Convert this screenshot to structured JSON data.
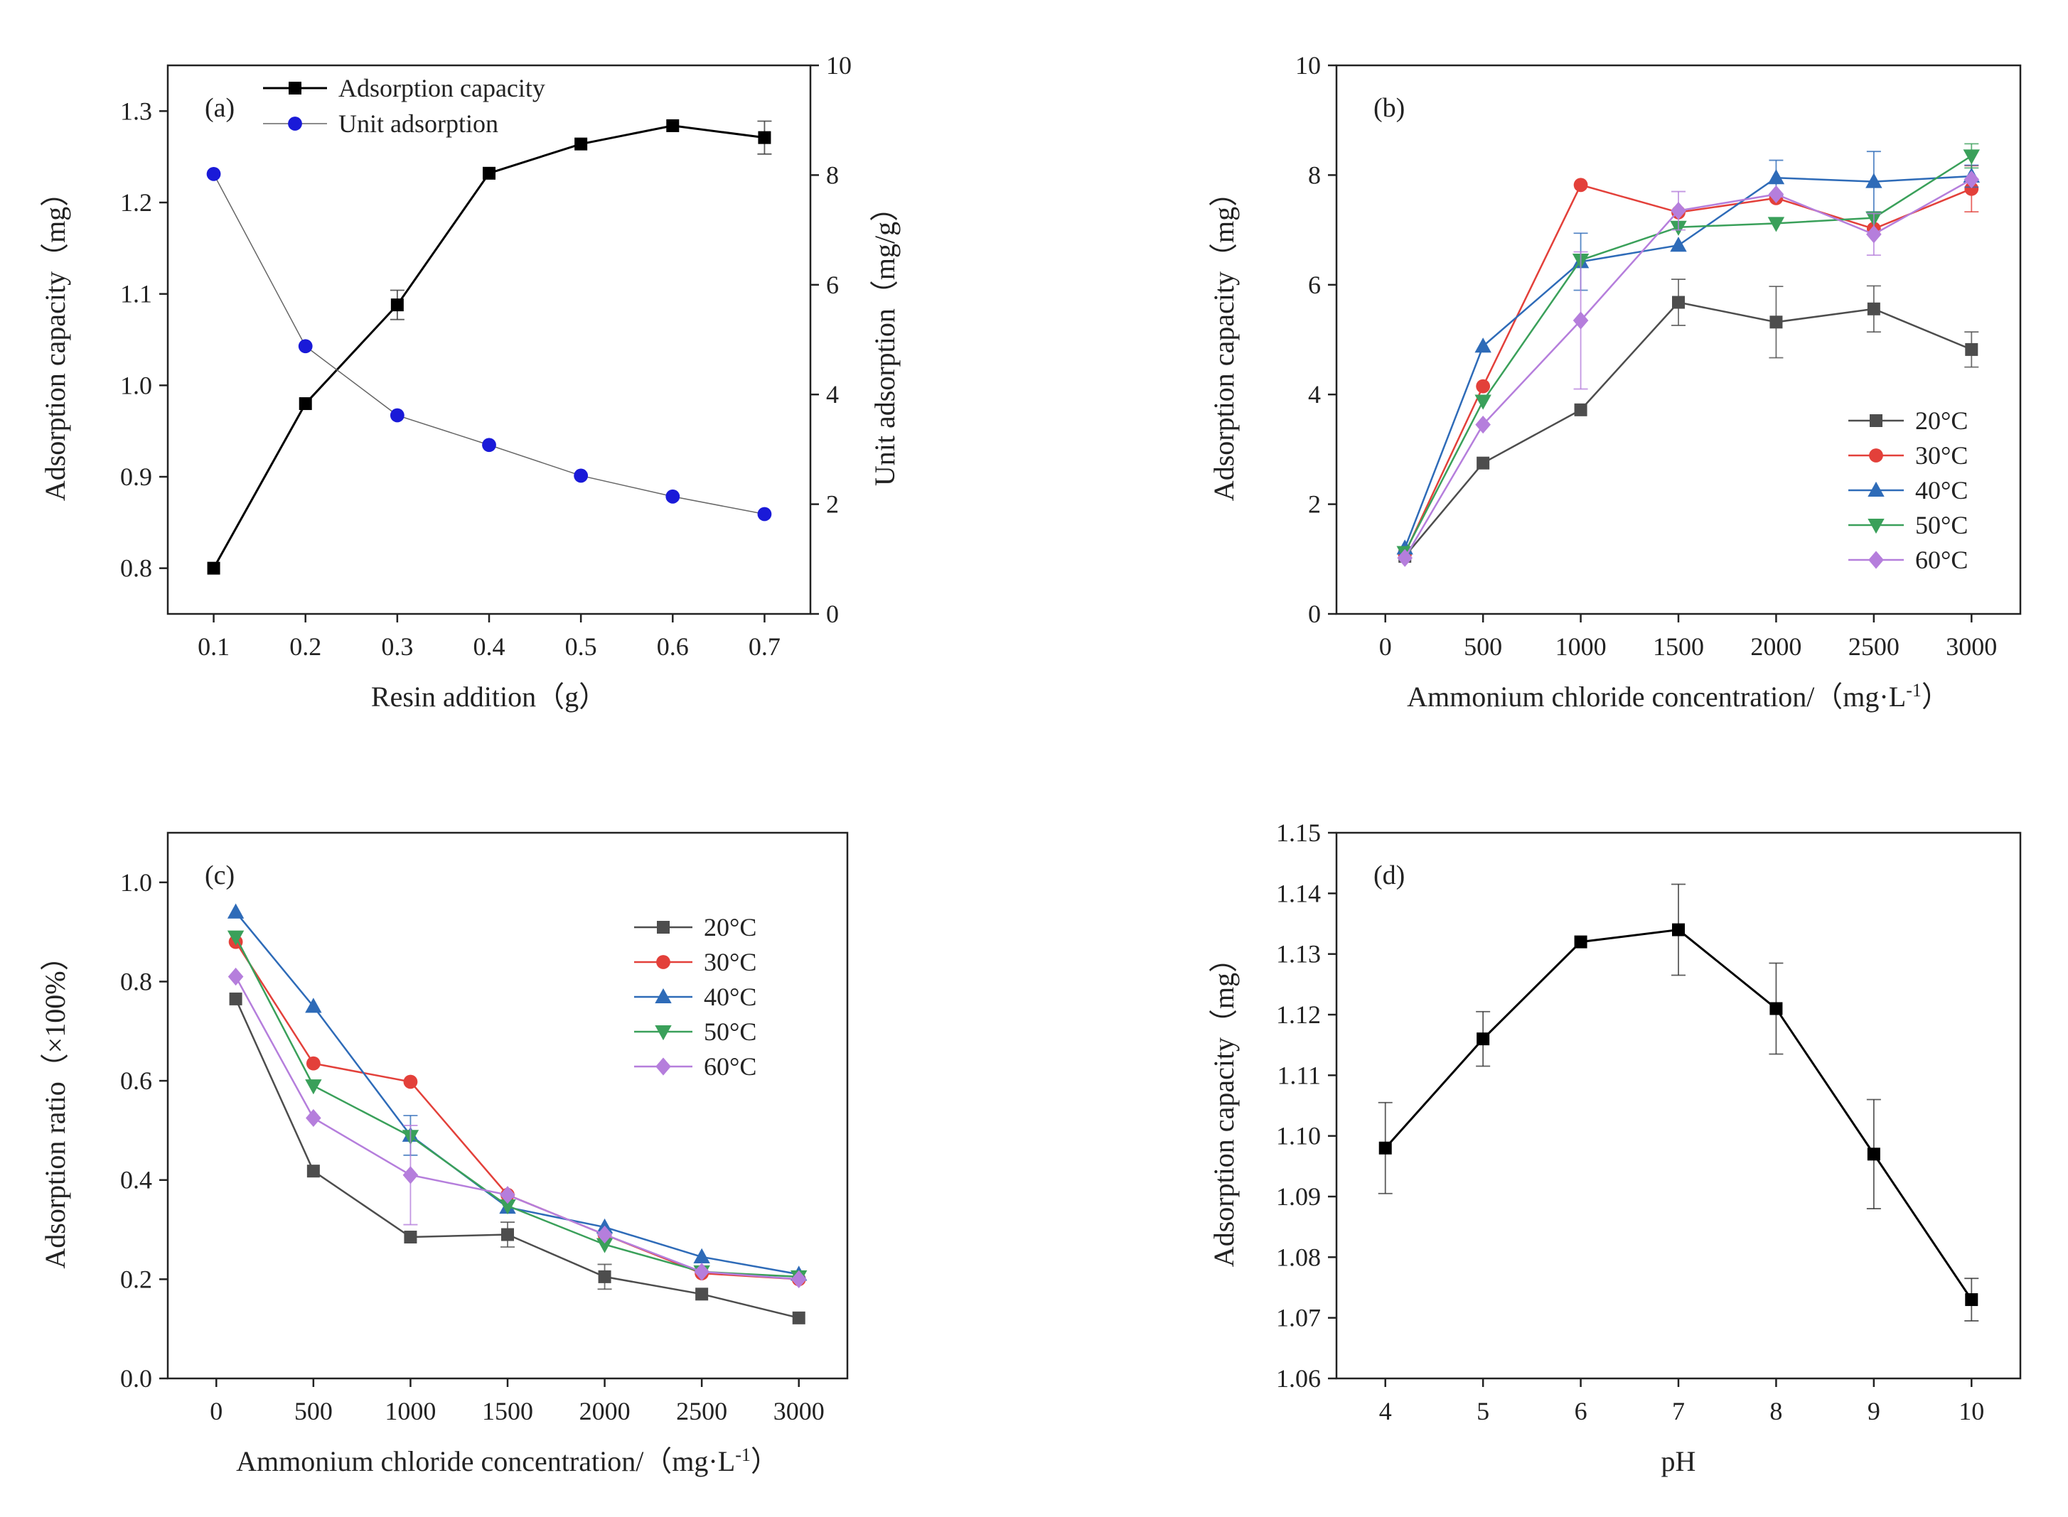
{
  "chart_data": [
    {
      "id": "a",
      "type": "line",
      "panel_label": "(a)",
      "xlabel": "Resin addition（g）",
      "ylabel": "Adsorption capacity（mg）",
      "y2label": "Unit adsorption（mg/g）",
      "xlim": [
        0.05,
        0.75
      ],
      "ylim": [
        0.75,
        1.35
      ],
      "y2lim": [
        0,
        10
      ],
      "x_ticks": [
        0.1,
        0.2,
        0.3,
        0.4,
        0.5,
        0.6,
        0.7
      ],
      "x_tick_labels": [
        "0.1",
        "0.2",
        "0.3",
        "0.4",
        "0.5",
        "0.6",
        "0.7"
      ],
      "y_ticks": [
        0.8,
        0.9,
        1.0,
        1.1,
        1.2,
        1.3
      ],
      "y_tick_labels": [
        "0.8",
        "0.9",
        "1.0",
        "1.1",
        "1.2",
        "1.3"
      ],
      "y2_ticks": [
        0,
        2,
        4,
        6,
        8,
        10
      ],
      "y2_tick_labels": [
        "0",
        "2",
        "4",
        "6",
        "8",
        "10"
      ],
      "legend": "top-left",
      "grid": false,
      "x": [
        0.1,
        0.2,
        0.3,
        0.4,
        0.5,
        0.6,
        0.7
      ],
      "series": [
        {
          "name": "Adsorption capacity",
          "axis": "left",
          "color": "#000000",
          "marker": "square",
          "line_width": 3,
          "values": [
            0.8,
            0.98,
            1.088,
            1.232,
            1.264,
            1.284,
            1.271
          ],
          "errors": [
            0,
            0,
            0.016,
            0,
            0,
            0,
            0.018
          ]
        },
        {
          "name": "Unit adsorption",
          "axis": "right",
          "color": "#1a1ad8",
          "line_color": "#666666",
          "marker": "circle",
          "line_width": 1.5,
          "values": [
            8.02,
            4.88,
            3.62,
            3.08,
            2.52,
            2.14,
            1.82
          ],
          "errors": [
            0,
            0,
            0,
            0,
            0,
            0,
            0
          ]
        }
      ]
    },
    {
      "id": "b",
      "type": "line",
      "panel_label": "(b)",
      "xlabel": "Ammonium chloride concentration/（mg·L",
      "xlabel_sup": "-1",
      "xlabel_tail": "）",
      "ylabel": "Adsorption capacity（mg）",
      "xlim": [
        -250,
        3250
      ],
      "ylim": [
        0,
        10
      ],
      "x_ticks": [
        0,
        500,
        1000,
        1500,
        2000,
        2500,
        3000
      ],
      "x_tick_labels": [
        "0",
        "500",
        "1000",
        "1500",
        "2000",
        "2500",
        "3000"
      ],
      "y_ticks": [
        0,
        2,
        4,
        6,
        8,
        10
      ],
      "y_tick_labels": [
        "0",
        "2",
        "4",
        "6",
        "8",
        "10"
      ],
      "legend": "bottom-right",
      "grid": false,
      "x": [
        100,
        500,
        1000,
        1500,
        2000,
        2500,
        3000
      ],
      "series": [
        {
          "name": "20°C",
          "color": "#4d4d4d",
          "marker": "square",
          "values": [
            1.05,
            2.75,
            3.72,
            5.68,
            5.32,
            5.56,
            4.82
          ],
          "errors": [
            0,
            0,
            0,
            0.42,
            0.65,
            0.42,
            0.32
          ]
        },
        {
          "name": "30°C",
          "color": "#e3403a",
          "marker": "circle",
          "values": [
            1.1,
            4.15,
            7.82,
            7.32,
            7.58,
            7.02,
            7.75
          ],
          "errors": [
            0,
            0,
            0,
            0,
            0,
            0,
            0.42
          ]
        },
        {
          "name": "40°C",
          "color": "#2e6bb8",
          "marker": "triangle-up",
          "values": [
            1.2,
            4.88,
            6.42,
            6.72,
            7.95,
            7.88,
            7.98
          ],
          "errors": [
            0,
            0,
            0.52,
            0,
            0.32,
            0.55,
            0.2
          ]
        },
        {
          "name": "50°C",
          "color": "#3aa05a",
          "marker": "triangle-down",
          "values": [
            1.12,
            3.88,
            6.45,
            7.05,
            7.12,
            7.22,
            8.35
          ],
          "errors": [
            0,
            0,
            0,
            0,
            0,
            0,
            0.22
          ]
        },
        {
          "name": "60°C",
          "color": "#b57edc",
          "marker": "diamond",
          "values": [
            1.02,
            3.45,
            5.35,
            7.35,
            7.65,
            6.92,
            7.92
          ],
          "errors": [
            0,
            0,
            1.25,
            0.35,
            0,
            0.38,
            0
          ]
        }
      ]
    },
    {
      "id": "c",
      "type": "line",
      "panel_label": "(c)",
      "xlabel": "Ammonium chloride concentration/（mg·L",
      "xlabel_sup": "-1",
      "xlabel_tail": "）",
      "ylabel": "Adsorption ratio（×100%）",
      "xlim": [
        -250,
        3250
      ],
      "ylim": [
        0.0,
        1.1
      ],
      "x_ticks": [
        0,
        500,
        1000,
        1500,
        2000,
        2500,
        3000
      ],
      "x_tick_labels": [
        "0",
        "500",
        "1000",
        "1500",
        "2000",
        "2500",
        "3000"
      ],
      "y_ticks": [
        0.0,
        0.2,
        0.4,
        0.6,
        0.8,
        1.0
      ],
      "y_tick_labels": [
        "0.0",
        "0.2",
        "0.4",
        "0.6",
        "0.8",
        "1.0"
      ],
      "legend": "top-right",
      "grid": false,
      "x": [
        100,
        500,
        1000,
        1500,
        2000,
        2500,
        3000
      ],
      "series": [
        {
          "name": "20°C",
          "color": "#4d4d4d",
          "marker": "square",
          "values": [
            0.765,
            0.418,
            0.285,
            0.29,
            0.205,
            0.17,
            0.122
          ],
          "errors": [
            0,
            0,
            0,
            0.025,
            0.025,
            0,
            0
          ]
        },
        {
          "name": "30°C",
          "color": "#e3403a",
          "marker": "circle",
          "values": [
            0.88,
            0.635,
            0.598,
            0.37,
            0.29,
            0.212,
            0.2
          ],
          "errors": [
            0,
            0,
            0,
            0,
            0,
            0,
            0
          ]
        },
        {
          "name": "40°C",
          "color": "#2e6bb8",
          "marker": "triangle-up",
          "values": [
            0.94,
            0.75,
            0.49,
            0.345,
            0.305,
            0.245,
            0.21
          ],
          "errors": [
            0,
            0,
            0.04,
            0,
            0,
            0,
            0
          ]
        },
        {
          "name": "50°C",
          "color": "#3aa05a",
          "marker": "triangle-down",
          "values": [
            0.89,
            0.59,
            0.488,
            0.348,
            0.27,
            0.215,
            0.205
          ],
          "errors": [
            0,
            0,
            0,
            0,
            0,
            0,
            0
          ]
        },
        {
          "name": "60°C",
          "color": "#b57edc",
          "marker": "diamond",
          "values": [
            0.81,
            0.525,
            0.41,
            0.37,
            0.29,
            0.215,
            0.2
          ],
          "errors": [
            0,
            0,
            0.1,
            0,
            0,
            0,
            0
          ]
        }
      ]
    },
    {
      "id": "d",
      "type": "line",
      "panel_label": "(d)",
      "xlabel": "pH",
      "ylabel": "Adsorption capacity（mg）",
      "xlim": [
        3.5,
        10.5
      ],
      "ylim": [
        1.06,
        1.15
      ],
      "x_ticks": [
        4,
        5,
        6,
        7,
        8,
        9,
        10
      ],
      "x_tick_labels": [
        "4",
        "5",
        "6",
        "7",
        "8",
        "9",
        "10"
      ],
      "y_ticks": [
        1.06,
        1.07,
        1.08,
        1.09,
        1.1,
        1.11,
        1.12,
        1.13,
        1.14,
        1.15
      ],
      "y_tick_labels": [
        "1.06",
        "1.07",
        "1.08",
        "1.09",
        "1.10",
        "1.11",
        "1.12",
        "1.13",
        "1.14",
        "1.15"
      ],
      "grid": false,
      "x": [
        4,
        5,
        6,
        7,
        8,
        9,
        10
      ],
      "series": [
        {
          "name": "Adsorption capacity",
          "color": "#000000",
          "marker": "square",
          "line_width": 3,
          "values": [
            1.098,
            1.116,
            1.132,
            1.134,
            1.121,
            1.097,
            1.073
          ],
          "errors": [
            0.0075,
            0.0045,
            0,
            0.0075,
            0.0075,
            0.009,
            0.0035
          ]
        }
      ]
    }
  ]
}
